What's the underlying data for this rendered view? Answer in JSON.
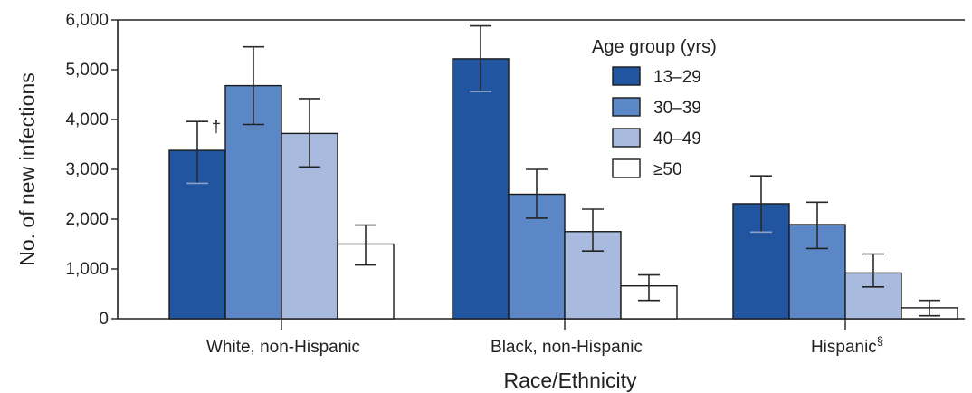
{
  "chart_data": {
    "type": "bar",
    "title": "",
    "xlabel": "Race/Ethnicity",
    "ylabel": "No. of new infections",
    "ylim": [
      0,
      6000
    ],
    "yticks": [
      0,
      1000,
      2000,
      3000,
      4000,
      5000,
      6000
    ],
    "ytick_labels": [
      "0",
      "1,000",
      "2,000",
      "3,000",
      "4,000",
      "5,000",
      "6,000"
    ],
    "categories": [
      "White, non-Hispanic",
      "Black, non-Hispanic",
      "Hispanic"
    ],
    "category_notes": [
      "",
      "",
      "§"
    ],
    "legend_title": "Age group (yrs)",
    "legend_position": "top-right",
    "grid": false,
    "series": [
      {
        "name": "13–29",
        "color": "#2155a0",
        "values": [
          3380,
          5220,
          2310
        ],
        "error_low": [
          2720,
          4560,
          1740
        ],
        "error_high": [
          3960,
          5880,
          2870
        ]
      },
      {
        "name": "30–39",
        "color": "#5b87c6",
        "values": [
          4680,
          2500,
          1890
        ],
        "error_low": [
          3900,
          2020,
          1410
        ],
        "error_high": [
          5460,
          3000,
          2340
        ]
      },
      {
        "name": "40–49",
        "color": "#a9badf",
        "values": [
          3720,
          1750,
          920
        ],
        "error_low": [
          3050,
          1360,
          640
        ],
        "error_high": [
          4420,
          2200,
          1300
        ]
      },
      {
        "name": "≥50",
        "color": "#ffffff",
        "values": [
          1500,
          660,
          220
        ],
        "error_low": [
          1080,
          370,
          60
        ],
        "error_high": [
          1880,
          880,
          370
        ]
      }
    ],
    "annotations": [
      {
        "text": "†",
        "category": 0,
        "series": 0
      }
    ]
  }
}
